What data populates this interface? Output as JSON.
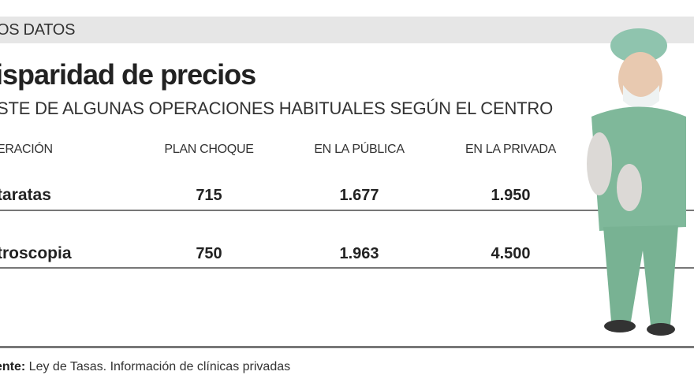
{
  "section_label": "OS DATOS",
  "title": "isparidad de precios",
  "subtitle": "STE DE ALGUNAS OPERACIONES HABITUALES SEGÚN EL CENTRO",
  "source_label": "ente:",
  "source_text": " Ley de Tasas. Información de clínicas privadas",
  "chart_data": {
    "type": "table",
    "title": "isparidad de precios",
    "columns": [
      "ERACIÓN",
      "PLAN CHOQUE",
      "EN LA PÚBLICA",
      "EN LA PRIVADA"
    ],
    "rows": [
      {
        "name": "taratas",
        "values": [
          "715",
          "1.677",
          "1.950"
        ]
      },
      {
        "name": "troscopia",
        "values": [
          "750",
          "1.963",
          "4.500"
        ]
      }
    ]
  },
  "colors": {
    "band": "#e6e6e6",
    "text": "#222222",
    "scrubs": "#7fb89a"
  }
}
